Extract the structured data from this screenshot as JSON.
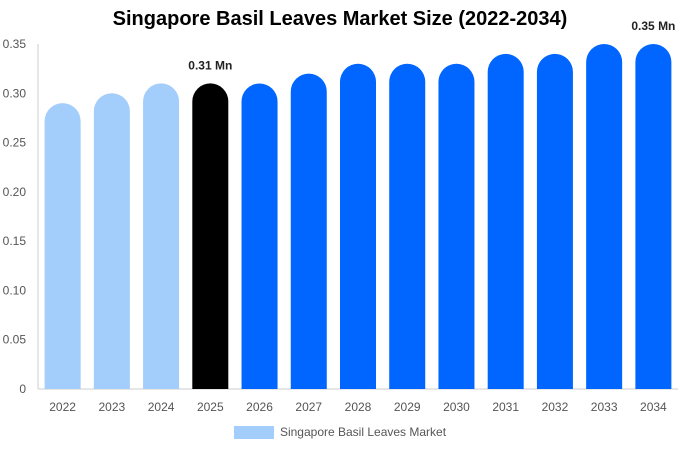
{
  "chart_data": {
    "type": "bar",
    "title": "Singapore Basil Leaves Market Size (2022-2034)",
    "xlabel": "",
    "ylabel": "",
    "categories": [
      "2022",
      "2023",
      "2024",
      "2025",
      "2026",
      "2027",
      "2028",
      "2029",
      "2030",
      "2031",
      "2032",
      "2033",
      "2034"
    ],
    "series": [
      {
        "name": "Singapore Basil Leaves Market",
        "values": [
          0.29,
          0.3,
          0.31,
          0.31,
          0.31,
          0.32,
          0.33,
          0.33,
          0.33,
          0.34,
          0.34,
          0.35,
          0.35
        ]
      }
    ],
    "ylim": [
      0,
      0.35
    ],
    "yticks": [
      "0",
      "0.05",
      "0.10",
      "0.15",
      "0.20",
      "0.25",
      "0.30",
      "0.35"
    ],
    "ytick_values": [
      0,
      0.05,
      0.1,
      0.15,
      0.2,
      0.25,
      0.3,
      0.35
    ],
    "data_labels": [
      {
        "category": "2025",
        "text": "0.31 Mn"
      },
      {
        "category": "2034",
        "text": "0.35 Mn"
      }
    ],
    "bar_colors": {
      "historical": "#a3cdfb",
      "current": "#000000",
      "forecast": "#0066ff"
    },
    "period_of_category": [
      "historical",
      "historical",
      "historical",
      "current",
      "forecast",
      "forecast",
      "forecast",
      "forecast",
      "forecast",
      "forecast",
      "forecast",
      "forecast",
      "forecast"
    ],
    "legend": {
      "label": "Singapore Basil Leaves Market",
      "color": "#a3cdfb",
      "position": "bottom"
    },
    "grid": false
  }
}
